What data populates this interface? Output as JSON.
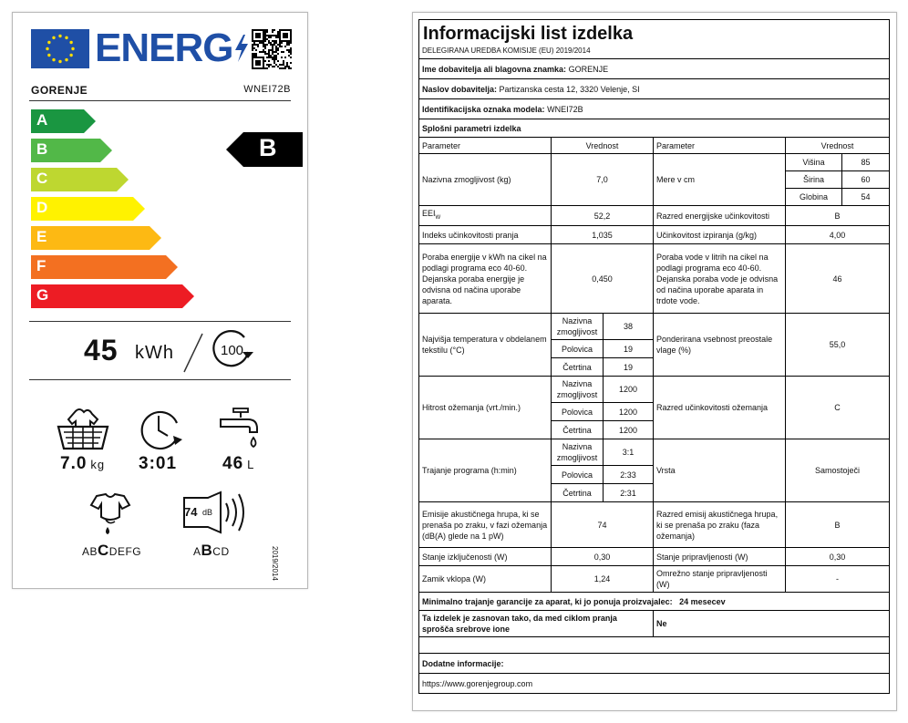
{
  "label": {
    "energy_word": "ENERG",
    "brand": "GORENJE",
    "model": "WNEI72B",
    "classes": [
      {
        "letter": "A",
        "color": "#1a9641"
      },
      {
        "letter": "B",
        "color": "#52b848"
      },
      {
        "letter": "C",
        "color": "#bed730"
      },
      {
        "letter": "D",
        "color": "#fff200"
      },
      {
        "letter": "E",
        "color": "#fdb913"
      },
      {
        "letter": "F",
        "color": "#f37021"
      },
      {
        "letter": "G",
        "color": "#ed1c24"
      }
    ],
    "energy_class": "B",
    "energy_value": "45",
    "energy_unit": "kWh",
    "cycles": "100",
    "capacity_value": "7.0",
    "capacity_unit": "kg",
    "duration_value": "3:01",
    "water_value": "46",
    "water_unit": "L",
    "spin_scale_pre": "AB",
    "spin_scale_class": "C",
    "spin_scale_post": "DEFG",
    "noise_value": "74",
    "noise_unit": "dB",
    "noise_scale_pre": "A",
    "noise_scale_class": "B",
    "noise_scale_post": "CD",
    "regulation": "2019/2014"
  },
  "sheet": {
    "title": "Informacijski list izdelka",
    "subtitle": "DELEGIRANA UREDBA KOMISIJE (EU) 2019/2014",
    "supplier_label": "Ime dobavitelja ali blagovna znamka:",
    "supplier_value": "GORENJE",
    "address_label": "Naslov dobavitelja:",
    "address_value": "Partizanska cesta 12, 3320 Velenje, SI",
    "model_label": "Identifikacijska oznaka modela:",
    "model_value": "WNEI72B",
    "general": "Splošni parametri izdelka",
    "h_param": "Parameter",
    "h_value": "Vrednost",
    "capacity_label": "Nazivna zmogljivost (kg)",
    "capacity_value": "7,0",
    "dims_label": "Mere v cm",
    "height_label": "Višina",
    "height_value": "85",
    "width_label": "Širina",
    "width_value": "60",
    "depth_label": "Globina",
    "depth_value": "54",
    "eei_label": "EEI",
    "eei_sub": "W",
    "eei_value": "52,2",
    "eclass_label": "Razred energijske učinkovitosti",
    "eclass_value": "B",
    "wash_label": "Indeks učinkovitosti pranja",
    "wash_value": "1,035",
    "rinse_label": "Učinkovitost izpiranja (g/kg)",
    "rinse_value": "4,00",
    "energy_label": "Poraba energije v kWh na cikel na podlagi programa eco 40-60. Dejanska poraba energije je odvisna od načina uporabe aparata.",
    "energy_value": "0,450",
    "water_label": "Poraba vode v litrih na cikel na podlagi programa eco 40-60. Dejanska poraba vode je odvisna od načina uporabe aparata in trdote vode.",
    "water_value": "46",
    "temp_label": "Najvišja temperatura v obdelanem tekstilu (°C)",
    "rated": "Nazivna zmogljivost",
    "half": "Polovica",
    "quarter": "Četrtina",
    "temp_rated": "38",
    "temp_half": "19",
    "temp_quarter": "19",
    "moist_label": "Ponderirana vsebnost preostale vlage (%)",
    "moist_value": "55,0",
    "spin_label": "Hitrost ožemanja (vrt./min.)",
    "spin_rated": "1200",
    "spin_half": "1200",
    "spin_quarter": "1200",
    "spinclass_label": "Razred učinkovitosti ožemanja",
    "spinclass_value": "C",
    "dur_label": "Trajanje programa (h:min)",
    "dur_rated": "3:1",
    "dur_half": "2:33",
    "dur_quarter": "2:31",
    "type_label": "Vrsta",
    "type_value": "Samostoječi",
    "noise_label": "Emisije akustičnega hrupa, ki se prenaša po zraku, v fazi ožemanja (dB(A) glede na 1 pW)",
    "noise_value": "74",
    "noiseclass_label": "Razred emisij akustičnega hrupa, ki se prenaša po zraku (faza ožemanja)",
    "noiseclass_value": "B",
    "off_label": "Stanje izključenosti (W)",
    "off_value": "0,30",
    "standby_label": "Stanje pripravljenosti (W)",
    "standby_value": "0,30",
    "delay_label": "Zamik vklopa (W)",
    "delay_value": "1,24",
    "netstandby_label": "Omrežno stanje pripravljenosti (W)",
    "netstandby_value": "-",
    "warranty_label": "Minimalno trajanje garancije za aparat, ki jo ponuja proizvajalec:",
    "warranty_value": "24 mesecev",
    "silver_label": "Ta izdelek je zasnovan tako, da med ciklom pranja sprošča srebrove ione",
    "silver_value": "Ne",
    "additional_label": "Dodatne informacije:",
    "url": "https://www.gorenjegroup.com"
  }
}
